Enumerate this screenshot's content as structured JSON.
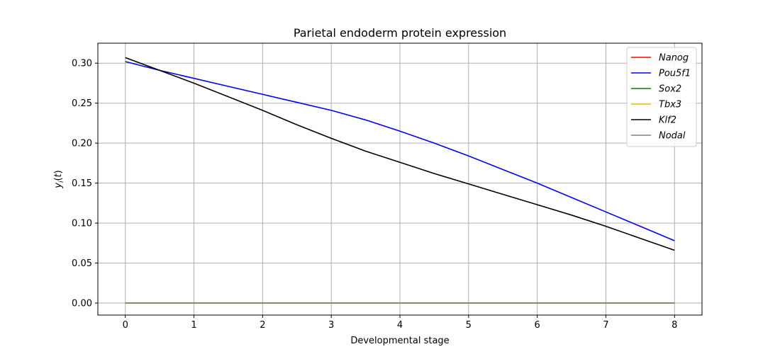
{
  "chart_data": {
    "type": "line",
    "title": "Parietal endoderm protein expression",
    "xlabel": "Developmental stage",
    "ylabel": "y_i(t)",
    "xlim": [
      -0.4,
      8.4
    ],
    "ylim": [
      -0.015,
      0.325
    ],
    "xticks": [
      0,
      1,
      2,
      3,
      4,
      5,
      6,
      7,
      8
    ],
    "yticks": [
      0.0,
      0.05,
      0.1,
      0.15,
      0.2,
      0.25,
      0.3
    ],
    "ytick_labels": [
      "0.00",
      "0.05",
      "0.10",
      "0.15",
      "0.20",
      "0.25",
      "0.30"
    ],
    "grid": true,
    "legend_position": "top-right",
    "x": [
      0,
      0.5,
      1,
      1.5,
      2,
      2.5,
      3,
      3.5,
      4,
      4.5,
      5,
      5.5,
      6,
      6.5,
      7,
      7.5,
      8
    ],
    "series": [
      {
        "name": "Nanog",
        "color": "#ff0000",
        "values": [
          0,
          0,
          0,
          0,
          0,
          0,
          0,
          0,
          0,
          0,
          0,
          0,
          0,
          0,
          0,
          0,
          0
        ]
      },
      {
        "name": "Pou5f1",
        "color": "#0000ff",
        "values": [
          0.302,
          0.291,
          0.281,
          0.271,
          0.261,
          0.251,
          0.241,
          0.229,
          0.215,
          0.2,
          0.184,
          0.167,
          0.15,
          0.132,
          0.114,
          0.096,
          0.078
        ]
      },
      {
        "name": "Sox2",
        "color": "#008000",
        "values": [
          0,
          0,
          0,
          0,
          0,
          0,
          0,
          0,
          0,
          0,
          0,
          0,
          0,
          0,
          0,
          0,
          0
        ]
      },
      {
        "name": "Tbx3",
        "color": "#e6b800",
        "values": [
          0,
          0,
          0,
          0,
          0,
          0,
          0,
          0,
          0,
          0,
          0,
          0,
          0,
          0,
          0,
          0,
          0
        ]
      },
      {
        "name": "Klf2",
        "color": "#000000",
        "values": [
          0.307,
          0.291,
          0.275,
          0.258,
          0.241,
          0.223,
          0.206,
          0.19,
          0.176,
          0.162,
          0.149,
          0.136,
          0.123,
          0.11,
          0.096,
          0.081,
          0.066
        ]
      },
      {
        "name": "Nodal",
        "color": "#808080",
        "values": [
          0,
          0,
          0,
          0,
          0,
          0,
          0,
          0,
          0,
          0,
          0,
          0,
          0,
          0,
          0,
          0,
          0
        ]
      }
    ]
  }
}
